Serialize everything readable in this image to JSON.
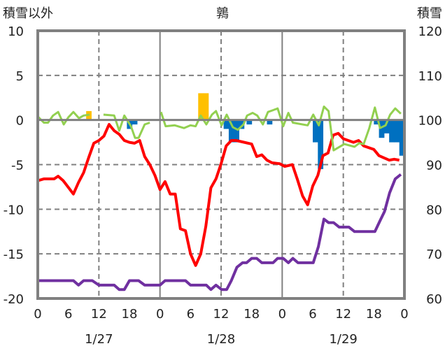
{
  "chart_data": {
    "type": "line",
    "title": "鶉",
    "ylabel_left": "積雪以外",
    "ylabel_right": "積雪",
    "ylim_left": [
      -20,
      10
    ],
    "ylim_right": [
      60,
      120
    ],
    "yticks_left": [
      "10",
      "5",
      "0",
      "-5",
      "-10",
      "-15",
      "-20"
    ],
    "yticks_right": [
      "120",
      "110",
      "100",
      "90",
      "80",
      "70",
      "60"
    ],
    "xlim_hours": [
      0,
      72
    ],
    "xticks": [
      "0",
      "6",
      "12",
      "18",
      "0",
      "6",
      "12",
      "18",
      "0",
      "6",
      "12",
      "18",
      "0"
    ],
    "dates": [
      "1/27",
      "1/28",
      "1/29"
    ],
    "grid": true,
    "colors": {
      "temp": "#ff0000",
      "green": "#92d050",
      "snow": "#7030a0",
      "pos_bar": "#ffc000",
      "neg_bar": "#0070c0",
      "axis": "#808080"
    },
    "series": [
      {
        "name": "red",
        "axis": "left",
        "points": [
          [
            0,
            -6.8
          ],
          [
            1.2,
            -6.6
          ],
          [
            3.2,
            -6.6
          ],
          [
            4,
            -6.3
          ],
          [
            5,
            -6.8
          ],
          [
            7,
            -8.3
          ],
          [
            8,
            -7
          ],
          [
            9,
            -5.9
          ],
          [
            10,
            -4.2
          ],
          [
            11,
            -2.6
          ],
          [
            12,
            -2.3
          ],
          [
            13,
            -1.8
          ],
          [
            14,
            -0.5
          ],
          [
            15,
            -1.2
          ],
          [
            16,
            -1.6
          ],
          [
            17,
            -2.3
          ],
          [
            18,
            -2.5
          ],
          [
            19,
            -2.6
          ],
          [
            20,
            -2.3
          ],
          [
            21,
            -4.1
          ],
          [
            22,
            -5
          ],
          [
            23,
            -6.2
          ],
          [
            24,
            -7.8
          ],
          [
            25,
            -6.9
          ],
          [
            26,
            -8.3
          ],
          [
            27,
            -8.3
          ],
          [
            28,
            -12.2
          ],
          [
            29,
            -12.4
          ],
          [
            30,
            -15
          ],
          [
            31,
            -16.3
          ],
          [
            32,
            -15
          ],
          [
            33,
            -11.9
          ],
          [
            34,
            -7.6
          ],
          [
            35,
            -6.6
          ],
          [
            36,
            -4.9
          ],
          [
            37,
            -2.9
          ],
          [
            38,
            -2.3
          ],
          [
            39,
            -2.3
          ],
          [
            42,
            -2.7
          ],
          [
            43,
            -4.1
          ],
          [
            44,
            -3.9
          ],
          [
            45,
            -4.5
          ],
          [
            46,
            -4.8
          ],
          [
            47.5,
            -4.9
          ],
          [
            48.5,
            -5.2
          ],
          [
            50,
            -5
          ],
          [
            51,
            -6.7
          ],
          [
            52,
            -8.5
          ],
          [
            53,
            -9.5
          ],
          [
            54,
            -7.4
          ],
          [
            55,
            -6.2
          ],
          [
            56,
            -4
          ],
          [
            57,
            -3.7
          ],
          [
            58,
            -1.7
          ],
          [
            59,
            -1.5
          ],
          [
            60,
            -2.1
          ],
          [
            62,
            -2.5
          ],
          [
            63,
            -2.3
          ],
          [
            64,
            -2.9
          ],
          [
            66,
            -3.3
          ],
          [
            67,
            -4
          ],
          [
            69,
            -4.5
          ],
          [
            70,
            -4.4
          ],
          [
            71,
            -4.5
          ]
        ]
      },
      {
        "name": "green",
        "axis": "left",
        "segments": [
          [
            [
              0,
              0.4
            ],
            [
              1.2,
              -0.3
            ],
            [
              2,
              -0.3
            ],
            [
              3,
              0.5
            ],
            [
              4,
              0.9
            ],
            [
              5.1,
              -0.5
            ],
            [
              6,
              0.3
            ],
            [
              7,
              0.9
            ],
            [
              8.1,
              0.2
            ],
            [
              9,
              0.5
            ],
            [
              10.2,
              0.6
            ]
          ],
          [
            [
              12.9,
              0.6
            ],
            [
              15,
              0.5
            ],
            [
              16,
              -1.2
            ],
            [
              17,
              0.5
            ],
            [
              18.3,
              -0.7
            ],
            [
              19.1,
              -2
            ],
            [
              19.8,
              -2
            ],
            [
              21,
              -0.5
            ],
            [
              22,
              -0.3
            ]
          ],
          [
            [
              24.2,
              0.9
            ],
            [
              25.1,
              -0.7
            ],
            [
              26.9,
              -0.6
            ],
            [
              28.7,
              -0.9
            ],
            [
              30,
              -0.6
            ],
            [
              31,
              -0.7
            ],
            [
              32,
              0.5
            ],
            [
              33.1,
              -0.5
            ],
            [
              34.2,
              0.6
            ],
            [
              35,
              1
            ],
            [
              36.1,
              -0.6
            ],
            [
              37.1,
              0.6
            ],
            [
              38.3,
              -0.8
            ],
            [
              39.3,
              -1.1
            ],
            [
              40.4,
              -0.5
            ],
            [
              41.1,
              0.5
            ],
            [
              42.2,
              0.8
            ],
            [
              43.1,
              0.5
            ],
            [
              44.2,
              -0.5
            ],
            [
              45.2,
              0.9
            ],
            [
              46.2,
              1.1
            ],
            [
              47.1,
              1.3
            ],
            [
              48.2,
              -0.7
            ],
            [
              49.2,
              0.8
            ],
            [
              50.1,
              -0.3
            ],
            [
              53,
              -0.6
            ],
            [
              54.1,
              0.6
            ],
            [
              55.2,
              -0.6
            ],
            [
              56.2,
              1.5
            ],
            [
              57.1,
              1
            ],
            [
              58.1,
              -3.4
            ],
            [
              60.2,
              -2.7
            ],
            [
              62.2,
              -3
            ],
            [
              63.1,
              -2.6
            ],
            [
              64,
              -2.7
            ],
            [
              65.1,
              -0.9
            ],
            [
              66.2,
              1.4
            ],
            [
              67.2,
              -0.9
            ],
            [
              68.3,
              -0.6
            ],
            [
              69.2,
              0.6
            ],
            [
              70.2,
              1.3
            ],
            [
              71.3,
              0.7
            ]
          ]
        ]
      },
      {
        "name": "purple",
        "axis": "right",
        "points": [
          [
            0,
            64
          ],
          [
            7,
            64
          ],
          [
            8,
            63
          ],
          [
            9,
            64
          ],
          [
            10.7,
            64
          ],
          [
            12,
            63
          ],
          [
            15,
            63
          ],
          [
            16,
            62
          ],
          [
            17,
            62
          ],
          [
            18,
            64
          ],
          [
            19.8,
            64
          ],
          [
            21,
            63
          ],
          [
            24,
            63
          ],
          [
            25,
            64
          ],
          [
            29,
            64
          ],
          [
            30,
            63
          ],
          [
            33.1,
            63
          ],
          [
            34,
            62
          ],
          [
            35,
            63
          ],
          [
            36.1,
            62
          ],
          [
            37.1,
            62
          ],
          [
            38,
            64
          ],
          [
            39.1,
            67
          ],
          [
            40.2,
            68
          ],
          [
            41,
            68
          ],
          [
            42,
            69
          ],
          [
            43,
            69
          ],
          [
            44,
            68
          ],
          [
            46.2,
            68
          ],
          [
            47.1,
            69
          ],
          [
            48.2,
            69
          ],
          [
            49.2,
            68
          ],
          [
            50.1,
            69
          ],
          [
            51.1,
            68
          ],
          [
            54.1,
            68
          ],
          [
            55.1,
            71.6
          ],
          [
            56.2,
            77.8
          ],
          [
            57.1,
            77
          ],
          [
            58.1,
            77
          ],
          [
            59.2,
            76
          ],
          [
            61.1,
            76
          ],
          [
            62.2,
            75
          ],
          [
            66.2,
            75
          ],
          [
            67.2,
            77.4
          ],
          [
            68.1,
            79.5
          ],
          [
            69.1,
            83.7
          ],
          [
            70.2,
            86.8
          ],
          [
            71.3,
            87.8
          ]
        ]
      }
    ],
    "bars": [
      {
        "hour": 10,
        "value": 1
      },
      {
        "hour": 32,
        "value": 3
      },
      {
        "hour": 33,
        "value": 3
      },
      {
        "hour": 18,
        "value": -1
      },
      {
        "hour": 19,
        "value": -0.5
      },
      {
        "hour": 37,
        "value": -1
      },
      {
        "hour": 38,
        "value": -2.5
      },
      {
        "hour": 39,
        "value": -2.5
      },
      {
        "hour": 40,
        "value": -1
      },
      {
        "hour": 41.5,
        "value": -0.5
      },
      {
        "hour": 45.5,
        "value": -0.5
      },
      {
        "hour": 54.5,
        "value": -2.5
      },
      {
        "hour": 55.5,
        "value": -5.5
      },
      {
        "hour": 66.5,
        "value": -0.5
      },
      {
        "hour": 67.5,
        "value": -2
      },
      {
        "hour": 68.5,
        "value": -1.5
      },
      {
        "hour": 69.5,
        "value": -2.5
      },
      {
        "hour": 70.5,
        "value": -2.5
      },
      {
        "hour": 71.5,
        "value": -4
      }
    ]
  }
}
